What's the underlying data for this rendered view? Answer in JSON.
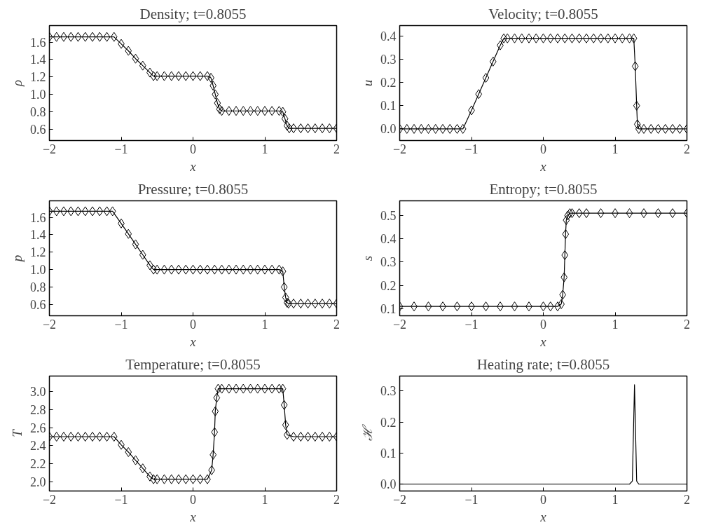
{
  "chart_data": [
    {
      "type": "line",
      "title": "Density; t=0.8055",
      "xlabel": "x",
      "ylabel": "ρ",
      "color": "#000000",
      "marker": "diamond",
      "grid": false,
      "xlim": [
        -2,
        2
      ],
      "xticks": [
        -2,
        -1,
        0,
        1,
        2
      ],
      "ylim": [
        0.47,
        1.79
      ],
      "yticks": [
        0.6,
        0.8,
        {
          "value": 1.0,
          "label": "1.0"
        },
        1.2,
        1.4,
        1.6
      ],
      "x": [
        -2,
        -1.9,
        -1.8,
        -1.7,
        -1.6,
        -1.5,
        -1.4,
        -1.3,
        -1.2,
        -1.1,
        -1.0,
        -0.9,
        -0.8,
        -0.7,
        -0.6,
        -0.55,
        -0.5,
        -0.4,
        -0.3,
        -0.2,
        -0.1,
        0,
        0.1,
        0.2,
        0.25,
        0.28,
        0.31,
        0.34,
        0.37,
        0.4,
        0.5,
        0.6,
        0.7,
        0.8,
        0.9,
        1.0,
        1.1,
        1.2,
        1.25,
        1.28,
        1.31,
        1.34,
        1.4,
        1.5,
        1.6,
        1.7,
        1.8,
        1.9,
        2.0
      ],
      "values": [
        1.66,
        1.66,
        1.66,
        1.66,
        1.66,
        1.66,
        1.66,
        1.66,
        1.66,
        1.66,
        1.58,
        1.5,
        1.41,
        1.33,
        1.25,
        1.21,
        1.21,
        1.21,
        1.21,
        1.21,
        1.21,
        1.21,
        1.21,
        1.21,
        1.19,
        1.1,
        1.0,
        0.9,
        0.83,
        0.81,
        0.81,
        0.81,
        0.81,
        0.81,
        0.81,
        0.81,
        0.81,
        0.81,
        0.8,
        0.72,
        0.64,
        0.61,
        0.61,
        0.61,
        0.61,
        0.61,
        0.61,
        0.61,
        0.61
      ]
    },
    {
      "type": "line",
      "title": "Velocity; t=0.8055",
      "xlabel": "x",
      "ylabel": "u",
      "color": "#000000",
      "marker": "diamond",
      "grid": false,
      "xlim": [
        -2,
        2
      ],
      "xticks": [
        -2,
        -1,
        0,
        1,
        2
      ],
      "ylim": [
        -0.05,
        0.445
      ],
      "yticks": [
        {
          "value": 0,
          "label": "0.0"
        },
        0.1,
        0.2,
        0.3,
        0.4
      ],
      "x": [
        -2,
        -1.9,
        -1.8,
        -1.7,
        -1.6,
        -1.5,
        -1.4,
        -1.3,
        -1.2,
        -1.12,
        -1.0,
        -0.9,
        -0.8,
        -0.7,
        -0.6,
        -0.55,
        -0.5,
        -0.4,
        -0.3,
        -0.2,
        -0.1,
        0,
        0.1,
        0.2,
        0.3,
        0.4,
        0.5,
        0.6,
        0.7,
        0.8,
        0.9,
        1.0,
        1.1,
        1.2,
        1.26,
        1.28,
        1.3,
        1.31,
        1.33,
        1.4,
        1.5,
        1.6,
        1.7,
        1.8,
        1.9,
        2.0
      ],
      "values": [
        0,
        0,
        0,
        0,
        0,
        0,
        0,
        0,
        0,
        0,
        0.08,
        0.15,
        0.22,
        0.29,
        0.36,
        0.39,
        0.39,
        0.39,
        0.39,
        0.39,
        0.39,
        0.39,
        0.39,
        0.39,
        0.39,
        0.39,
        0.39,
        0.39,
        0.39,
        0.39,
        0.39,
        0.39,
        0.39,
        0.39,
        0.39,
        0.27,
        0.1,
        0.02,
        0,
        0,
        0,
        0,
        0,
        0,
        0,
        0
      ]
    },
    {
      "type": "line",
      "title": "Pressure; t=0.8055",
      "xlabel": "x",
      "ylabel": "p",
      "color": "#000000",
      "marker": "diamond",
      "grid": false,
      "xlim": [
        -2,
        2
      ],
      "xticks": [
        -2,
        -1,
        0,
        1,
        2
      ],
      "ylim": [
        0.47,
        1.79
      ],
      "yticks": [
        0.6,
        0.8,
        {
          "value": 1.0,
          "label": "1.0"
        },
        1.2,
        1.4,
        1.6
      ],
      "x": [
        -2,
        -1.9,
        -1.8,
        -1.7,
        -1.6,
        -1.5,
        -1.4,
        -1.3,
        -1.2,
        -1.12,
        -1.0,
        -0.9,
        -0.8,
        -0.7,
        -0.6,
        -0.55,
        -0.5,
        -0.4,
        -0.3,
        -0.2,
        -0.1,
        0,
        0.1,
        0.2,
        0.3,
        0.4,
        0.5,
        0.6,
        0.7,
        0.8,
        0.9,
        1.0,
        1.1,
        1.2,
        1.25,
        1.27,
        1.29,
        1.31,
        1.33,
        1.4,
        1.5,
        1.6,
        1.7,
        1.8,
        1.9,
        2.0
      ],
      "values": [
        1.67,
        1.67,
        1.67,
        1.67,
        1.67,
        1.67,
        1.67,
        1.67,
        1.67,
        1.67,
        1.53,
        1.41,
        1.29,
        1.17,
        1.05,
        1.0,
        1.0,
        1.0,
        1.0,
        1.0,
        1.0,
        1.0,
        1.0,
        1.0,
        1.0,
        1.0,
        1.0,
        1.0,
        1.0,
        1.0,
        1.0,
        1.0,
        1.0,
        1.0,
        0.98,
        0.8,
        0.68,
        0.62,
        0.61,
        0.61,
        0.61,
        0.61,
        0.61,
        0.61,
        0.61,
        0.61
      ]
    },
    {
      "type": "line",
      "title": "Entropy; t=0.8055",
      "xlabel": "x",
      "ylabel": "s",
      "color": "#000000",
      "marker": "diamond",
      "grid": false,
      "xlim": [
        -2,
        2
      ],
      "xticks": [
        -2,
        -1,
        0,
        1,
        2
      ],
      "ylim": [
        0.07,
        0.563
      ],
      "yticks": [
        0.1,
        0.2,
        0.3,
        0.4,
        0.5
      ],
      "x": [
        -2,
        -1.8,
        -1.6,
        -1.4,
        -1.2,
        -1.0,
        -0.8,
        -0.6,
        -0.4,
        -0.2,
        0,
        0.1,
        0.2,
        0.25,
        0.27,
        0.29,
        0.3,
        0.31,
        0.32,
        0.34,
        0.37,
        0.4,
        0.5,
        0.6,
        0.8,
        1.0,
        1.2,
        1.4,
        1.6,
        1.8,
        2.0
      ],
      "values": [
        0.11,
        0.11,
        0.11,
        0.11,
        0.11,
        0.11,
        0.11,
        0.11,
        0.11,
        0.11,
        0.11,
        0.11,
        0.11,
        0.12,
        0.16,
        0.235,
        0.33,
        0.42,
        0.48,
        0.5,
        0.51,
        0.51,
        0.51,
        0.51,
        0.51,
        0.51,
        0.51,
        0.51,
        0.51,
        0.51,
        0.51
      ]
    },
    {
      "type": "line",
      "title": "Temperature; t=0.8055",
      "xlabel": "x",
      "ylabel": "T",
      "color": "#000000",
      "marker": "diamond",
      "grid": false,
      "xlim": [
        -2,
        2
      ],
      "xticks": [
        -2,
        -1,
        0,
        1,
        2
      ],
      "ylim": [
        1.9,
        3.17
      ],
      "yticks": [
        {
          "value": 2.0,
          "label": "2.0"
        },
        2.2,
        2.4,
        2.6,
        2.8,
        {
          "value": 3.0,
          "label": "3.0"
        }
      ],
      "x": [
        -2,
        -1.9,
        -1.8,
        -1.7,
        -1.6,
        -1.5,
        -1.4,
        -1.3,
        -1.2,
        -1.1,
        -1.0,
        -0.9,
        -0.8,
        -0.7,
        -0.6,
        -0.55,
        -0.5,
        -0.4,
        -0.3,
        -0.2,
        -0.1,
        0,
        0.1,
        0.2,
        0.26,
        0.28,
        0.3,
        0.31,
        0.33,
        0.35,
        0.4,
        0.5,
        0.6,
        0.7,
        0.8,
        0.9,
        1.0,
        1.1,
        1.2,
        1.25,
        1.27,
        1.29,
        1.31,
        1.4,
        1.5,
        1.6,
        1.7,
        1.8,
        1.9,
        2.0
      ],
      "values": [
        2.5,
        2.5,
        2.5,
        2.5,
        2.5,
        2.5,
        2.5,
        2.5,
        2.5,
        2.5,
        2.41,
        2.33,
        2.24,
        2.15,
        2.06,
        2.03,
        2.03,
        2.03,
        2.03,
        2.03,
        2.03,
        2.03,
        2.03,
        2.03,
        2.13,
        2.3,
        2.55,
        2.78,
        2.93,
        3.03,
        3.03,
        3.03,
        3.03,
        3.03,
        3.03,
        3.03,
        3.03,
        3.03,
        3.03,
        3.03,
        2.85,
        2.63,
        2.52,
        2.5,
        2.5,
        2.5,
        2.5,
        2.5,
        2.5,
        2.5
      ]
    },
    {
      "type": "line",
      "title": "Heating rate; t=0.8055",
      "xlabel": "x",
      "ylabel": "ℋ",
      "color": "#000000",
      "marker": "none",
      "grid": false,
      "xlim": [
        -2,
        2
      ],
      "xticks": [
        -2,
        -1,
        0,
        1,
        2
      ],
      "ylim": [
        -0.022,
        0.348
      ],
      "yticks": [
        {
          "value": 0,
          "label": "0.0"
        },
        0.1,
        0.2,
        0.3
      ],
      "x": [
        -2,
        1.2,
        1.24,
        1.27,
        1.3,
        1.33,
        2
      ],
      "values": [
        0,
        0,
        0.01,
        0.32,
        0.01,
        0,
        0
      ]
    }
  ]
}
